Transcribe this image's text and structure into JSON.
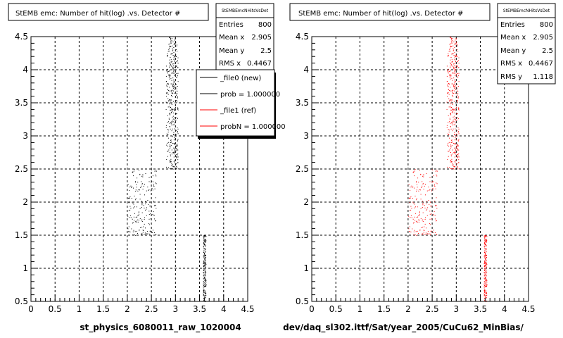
{
  "chart_data": [
    {
      "type": "scatter",
      "title": "StEMB emc: Number of hit(log) .vs. Detector #",
      "xlim": [
        0,
        4.5
      ],
      "ylim": [
        0.5,
        4.5
      ],
      "x_ticks": [
        "0",
        "0.5",
        "1",
        "1.5",
        "2",
        "2.5",
        "3",
        "3.5",
        "4",
        "4.5"
      ],
      "y_ticks": [
        "0.5",
        "1",
        "1.5",
        "2",
        "2.5",
        "3",
        "3.5",
        "4",
        "4.5"
      ],
      "grid": true,
      "marker_color": "#000000",
      "xlabel": "st_physics_6080011_raw_1020004",
      "stats": {
        "name": "StEMBEmcNHitsVsDet",
        "rows": [
          {
            "label": "Entries",
            "value": "800"
          },
          {
            "label": "Mean x",
            "value": "2.905"
          },
          {
            "label": "Mean y",
            "value": "2.5"
          },
          {
            "label": "RMS x",
            "value": "0.4467"
          }
        ]
      },
      "legend": {
        "placement": "top-right",
        "entries": [
          {
            "label": "_file0 (new)",
            "color": "#000000"
          },
          {
            "label": "prob = 1.000000",
            "color": "#000000"
          },
          {
            "label": "_file1 (ref)",
            "color": "#ff0000"
          },
          {
            "label": "probN = 1.000000",
            "color": "#ff0000"
          }
        ]
      },
      "clusters": [
        {
          "x": [
            2.8,
            3.05
          ],
          "y": [
            2.5,
            4.5
          ],
          "n": 400
        },
        {
          "x": [
            2.0,
            2.6
          ],
          "y": [
            1.5,
            2.5
          ],
          "n": 200
        },
        {
          "x": [
            3.57,
            3.63
          ],
          "y": [
            0.5,
            1.5
          ],
          "n": 200
        }
      ]
    },
    {
      "type": "scatter",
      "title": "StEMB emc: Number of hit(log) .vs. Detector #",
      "xlim": [
        0,
        4.5
      ],
      "ylim": [
        0.5,
        4.5
      ],
      "x_ticks": [
        "0",
        "0.5",
        "1",
        "1.5",
        "2",
        "2.5",
        "3",
        "3.5",
        "4",
        "4.5"
      ],
      "y_ticks": [
        "0.5",
        "1",
        "1.5",
        "2",
        "2.5",
        "3",
        "3.5",
        "4",
        "4.5"
      ],
      "grid": true,
      "marker_color": "#ff0000",
      "xlabel": "dev/daq_sl302.ittf/Sat/year_2005/CuCu62_MinBias/",
      "stats": {
        "name": "StEMBEmcNHitsVsDet",
        "rows": [
          {
            "label": "Entries",
            "value": "800"
          },
          {
            "label": "Mean x",
            "value": "2.905"
          },
          {
            "label": "Mean y",
            "value": "2.5"
          },
          {
            "label": "RMS x",
            "value": "0.4467"
          },
          {
            "label": "RMS y",
            "value": "1.118"
          }
        ]
      },
      "clusters": [
        {
          "x": [
            2.8,
            3.05
          ],
          "y": [
            2.5,
            4.5
          ],
          "n": 400
        },
        {
          "x": [
            2.0,
            2.6
          ],
          "y": [
            1.5,
            2.5
          ],
          "n": 200
        },
        {
          "x": [
            3.57,
            3.63
          ],
          "y": [
            0.5,
            1.5
          ],
          "n": 200
        }
      ]
    }
  ]
}
